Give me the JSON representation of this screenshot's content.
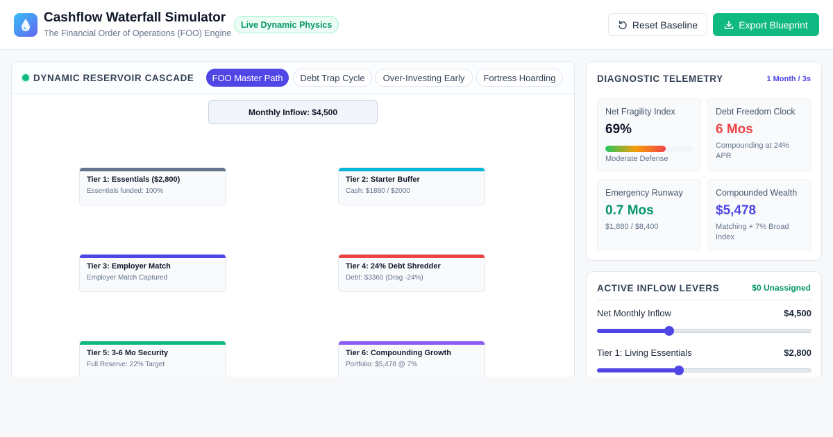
{
  "header": {
    "title": "Cashflow Waterfall Simulator",
    "subtitle": "The Financial Order of Operations (FOO) Engine",
    "badge": "Live Dynamic Physics",
    "reset_label": "Reset Baseline",
    "export_label": "Export Blueprint",
    "logo_icon": "water-drop-icon",
    "accent_color": "#10b981",
    "brand_color": "#4f46e5"
  },
  "cascade": {
    "title": "DYNAMIC RESERVOIR CASCADE",
    "scenarios": [
      {
        "label": "FOO Master Path",
        "active": true
      },
      {
        "label": "Debt Trap Cycle",
        "active": false
      },
      {
        "label": "Over-Investing Early",
        "active": false
      },
      {
        "label": "Fortress Hoarding",
        "active": false
      }
    ],
    "inflow_label": "Monthly Inflow: $4,500",
    "tiers": [
      {
        "name": "Tier 1: Essentials ($2,800)",
        "detail": "Essentials funded: 100%",
        "color": "#64748b"
      },
      {
        "name": "Tier 2: Starter Buffer",
        "detail": "Cash: $1880 / $2000",
        "color": "#06b6d4"
      },
      {
        "name": "Tier 3: Employer Match",
        "detail": "Employer Match Captured",
        "color": "#4f46e5"
      },
      {
        "name": "Tier 4: 24% Debt Shredder",
        "detail": "Debt: $3360 (Drag -24%)",
        "color": "#ef4444"
      },
      {
        "name": "Tier 5: 3-6 Mo Security",
        "detail": "Full Reserve: 22% Target",
        "color": "#10b981"
      },
      {
        "name": "Tier 6: Compounding Growth",
        "detail": "Portfolio: $5,478 @ 7%",
        "color": "#8b5cf6"
      }
    ]
  },
  "telemetry": {
    "title": "DIAGNOSTIC TELEMETRY",
    "rate": "1 Month / 3s",
    "metrics": [
      {
        "label": "Net Fragility Index",
        "value": "69%",
        "note": "Moderate Defense",
        "color": "#0f172a",
        "level": 0.69
      },
      {
        "label": "Debt Freedom Clock",
        "value": "6 Mos",
        "note": "Compounding at 24% APR",
        "color": "#ef4444"
      },
      {
        "label": "Emergency Runway",
        "value": "0.7 Mos",
        "note": "$1,880 / $8,400",
        "color": "#059669"
      },
      {
        "label": "Compounded Wealth",
        "value": "$5,478",
        "note": "Matching + 7% Broad Index",
        "color": "#4f46e5"
      }
    ]
  },
  "levers": {
    "title": "ACTIVE INFLOW LEVERS",
    "unassigned": "$0 Unassigned",
    "items": [
      {
        "label": "Net Monthly Inflow",
        "value": "$4,500",
        "level": 0.336
      },
      {
        "label": "Tier 1: Living Essentials",
        "value": "$2,800",
        "level": 0.381
      }
    ]
  }
}
